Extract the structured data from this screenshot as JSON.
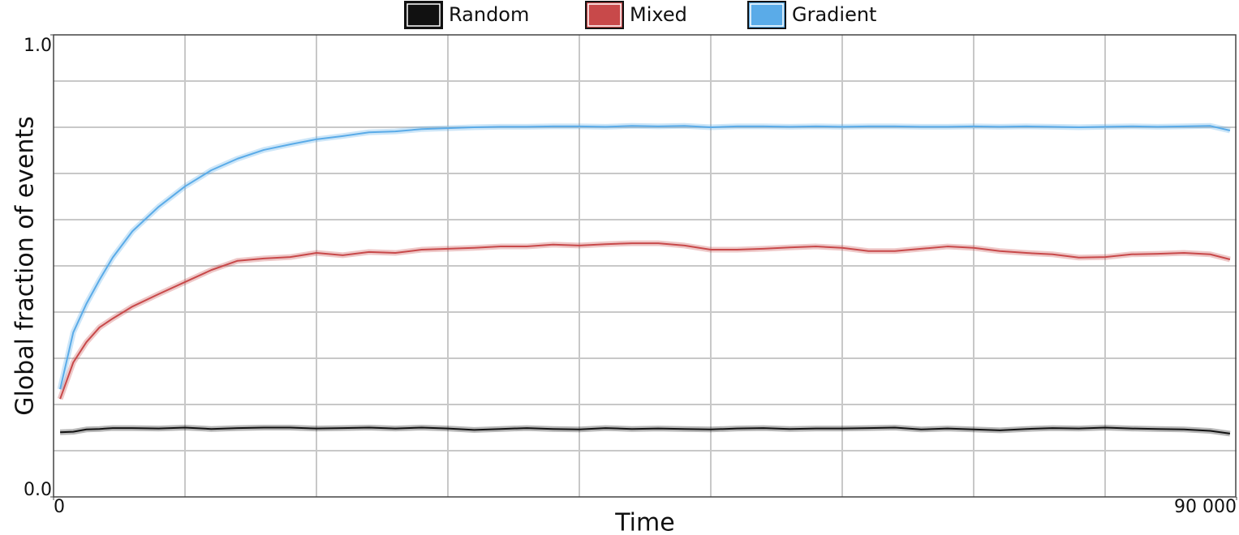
{
  "chart_data": {
    "type": "line",
    "x_label": "Time",
    "y_label": "Global fraction of events",
    "legend": "top",
    "grid": true,
    "x": [
      500,
      1500,
      2500,
      3500,
      4500,
      6000,
      8000,
      10000,
      12000,
      14000,
      16000,
      18000,
      20000,
      22000,
      24000,
      26000,
      28000,
      30000,
      32000,
      34000,
      36000,
      38000,
      40000,
      42000,
      44000,
      46000,
      48000,
      50000,
      52000,
      54000,
      56000,
      58000,
      60000,
      62000,
      64000,
      66000,
      68000,
      70000,
      72000,
      74000,
      76000,
      78000,
      80000,
      82000,
      84000,
      86000,
      88000,
      89500
    ],
    "series": [
      {
        "name": "Random",
        "color": "#111111",
        "values": [
          0.14,
          0.141,
          0.146,
          0.147,
          0.149,
          0.149,
          0.148,
          0.15,
          0.147,
          0.149,
          0.15,
          0.15,
          0.148,
          0.149,
          0.15,
          0.148,
          0.15,
          0.148,
          0.145,
          0.147,
          0.149,
          0.147,
          0.146,
          0.149,
          0.147,
          0.148,
          0.147,
          0.146,
          0.148,
          0.149,
          0.147,
          0.148,
          0.148,
          0.149,
          0.15,
          0.146,
          0.148,
          0.146,
          0.144,
          0.147,
          0.149,
          0.148,
          0.15,
          0.148,
          0.147,
          0.146,
          0.143,
          0.137
        ]
      },
      {
        "name": "Mixed",
        "color": "#c8494a",
        "values": [
          0.212,
          0.291,
          0.335,
          0.367,
          0.386,
          0.412,
          0.439,
          0.465,
          0.491,
          0.511,
          0.516,
          0.519,
          0.528,
          0.523,
          0.53,
          0.528,
          0.535,
          0.537,
          0.539,
          0.542,
          0.542,
          0.546,
          0.544,
          0.547,
          0.549,
          0.549,
          0.544,
          0.535,
          0.535,
          0.537,
          0.54,
          0.542,
          0.539,
          0.532,
          0.532,
          0.537,
          0.542,
          0.539,
          0.532,
          0.528,
          0.525,
          0.518,
          0.519,
          0.525,
          0.526,
          0.528,
          0.525,
          0.514
        ]
      },
      {
        "name": "Gradient",
        "color": "#5aabe8",
        "values": [
          0.233,
          0.356,
          0.418,
          0.47,
          0.518,
          0.575,
          0.628,
          0.672,
          0.707,
          0.732,
          0.751,
          0.763,
          0.774,
          0.781,
          0.789,
          0.791,
          0.796,
          0.798,
          0.8,
          0.801,
          0.801,
          0.802,
          0.802,
          0.801,
          0.803,
          0.802,
          0.803,
          0.8,
          0.802,
          0.802,
          0.801,
          0.802,
          0.801,
          0.802,
          0.802,
          0.801,
          0.801,
          0.802,
          0.801,
          0.802,
          0.801,
          0.8,
          0.801,
          0.802,
          0.801,
          0.802,
          0.803,
          0.793
        ]
      }
    ],
    "xlim": [
      0,
      90000
    ],
    "xticks": [
      0,
      {
        "value": 90000,
        "label": "90 000"
      }
    ],
    "ylim": [
      0,
      1
    ],
    "yticks": [
      {
        "value": 0,
        "label": "0.0"
      },
      {
        "value": 1,
        "label": "1.0"
      }
    ],
    "xgrid": [
      10000,
      20000,
      30000,
      40000,
      50000,
      60000,
      70000,
      80000
    ],
    "ygrid": [
      0.1,
      0.2,
      0.3,
      0.4,
      0.5,
      0.6,
      0.7,
      0.8,
      0.9
    ]
  }
}
